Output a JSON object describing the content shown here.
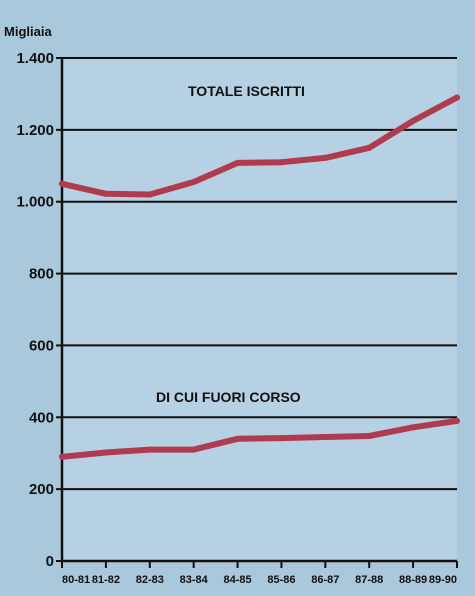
{
  "chart_data": {
    "type": "line",
    "unit_label": "Migliaia",
    "categories": [
      "80-81",
      "81-82",
      "82-83",
      "83-84",
      "84-85",
      "85-86",
      "86-87",
      "87-88",
      "88-89",
      "89-90"
    ],
    "ylim": [
      0,
      1400
    ],
    "yticks": [
      0,
      200,
      400,
      600,
      800,
      1000,
      1200,
      1400
    ],
    "ytick_labels": [
      "0",
      "200",
      "400",
      "600",
      "800",
      "1.000",
      "1.200",
      "1.400"
    ],
    "grid": true,
    "line_color": "#b03a4e",
    "series": [
      {
        "name": "TOTALE ISCRITTI",
        "values": [
          1050,
          1022,
          1020,
          1055,
          1108,
          1110,
          1122,
          1150,
          1225,
          1290
        ]
      },
      {
        "name": "DI CUI FUORI CORSO",
        "values": [
          290,
          302,
          310,
          310,
          340,
          342,
          345,
          348,
          372,
          390
        ]
      }
    ]
  }
}
